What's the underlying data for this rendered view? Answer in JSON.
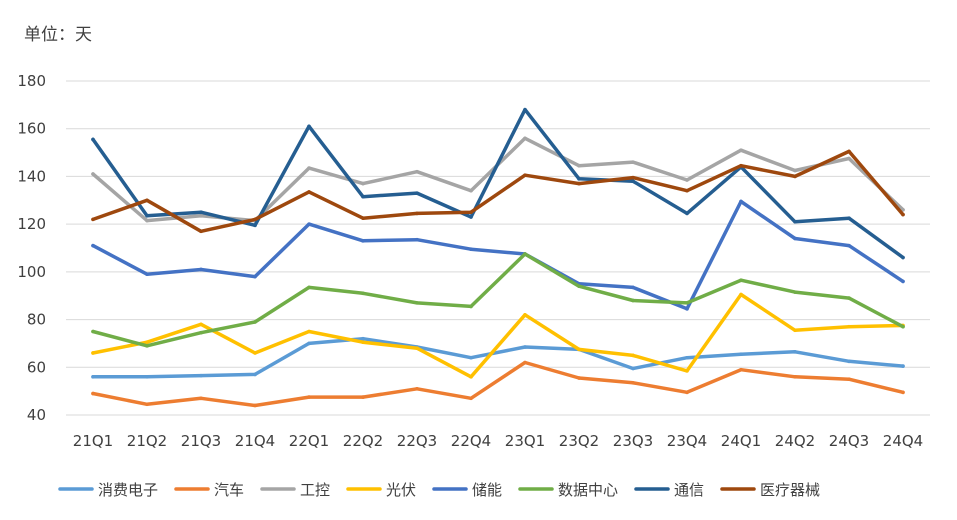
{
  "unit_label": "单位：天",
  "chart_data": {
    "type": "line",
    "title": "",
    "xlabel": "",
    "ylabel": "单位：天",
    "ylim": [
      40,
      180
    ],
    "yticks": [
      40,
      60,
      80,
      100,
      120,
      140,
      160,
      180
    ],
    "grid": true,
    "legend_position": "bottom",
    "categories": [
      "21Q1",
      "21Q2",
      "21Q3",
      "21Q4",
      "22Q1",
      "22Q2",
      "22Q3",
      "22Q4",
      "23Q1",
      "23Q2",
      "23Q3",
      "23Q4",
      "24Q1",
      "24Q2",
      "24Q3",
      "24Q4"
    ],
    "series": [
      {
        "name": "消费电子",
        "color": "#5b9bd5",
        "values": [
          56,
          56,
          56.5,
          57,
          70,
          72,
          68.5,
          64,
          68.5,
          67.5,
          59.5,
          64,
          65.5,
          66.5,
          62.5,
          60.5
        ]
      },
      {
        "name": "汽车",
        "color": "#ed7d31",
        "values": [
          49,
          44.5,
          47,
          44,
          47.5,
          47.5,
          51,
          47,
          62,
          55.5,
          53.5,
          49.5,
          59,
          56,
          55,
          49.5
        ]
      },
      {
        "name": "工控",
        "color": "#a5a5a5",
        "values": [
          141,
          121.5,
          123.5,
          121.5,
          143.5,
          137,
          142,
          134,
          156,
          144.5,
          146,
          138.5,
          151,
          142.5,
          147.5,
          126
        ]
      },
      {
        "name": "光伏",
        "color": "#ffc000",
        "values": [
          66,
          70.5,
          78,
          66,
          75,
          70.5,
          68,
          56,
          82,
          67.5,
          65,
          58.5,
          90.5,
          75.5,
          77,
          77.5
        ]
      },
      {
        "name": "储能",
        "color": "#4472c4",
        "values": [
          111,
          99,
          101,
          98,
          120,
          113,
          113.5,
          109.5,
          107.5,
          95,
          93.5,
          84.5,
          129.5,
          114,
          111,
          96
        ]
      },
      {
        "name": "数据中心",
        "color": "#70ad47",
        "values": [
          75,
          69,
          74.5,
          79,
          93.5,
          91,
          87,
          85.5,
          107.5,
          94,
          88,
          87,
          96.5,
          91.5,
          89,
          77
        ]
      },
      {
        "name": "通信",
        "color": "#255e91",
        "values": [
          155.5,
          123.5,
          125,
          119.5,
          161,
          131.5,
          133,
          123,
          168,
          139,
          138,
          124.5,
          144,
          121,
          122.5,
          106
        ]
      },
      {
        "name": "医疗器械",
        "color": "#9e480e",
        "values": [
          122,
          130,
          117,
          122,
          133.5,
          122.5,
          124.5,
          125,
          140.5,
          137,
          139.5,
          134,
          144.5,
          140,
          150.5,
          124
        ]
      }
    ]
  }
}
